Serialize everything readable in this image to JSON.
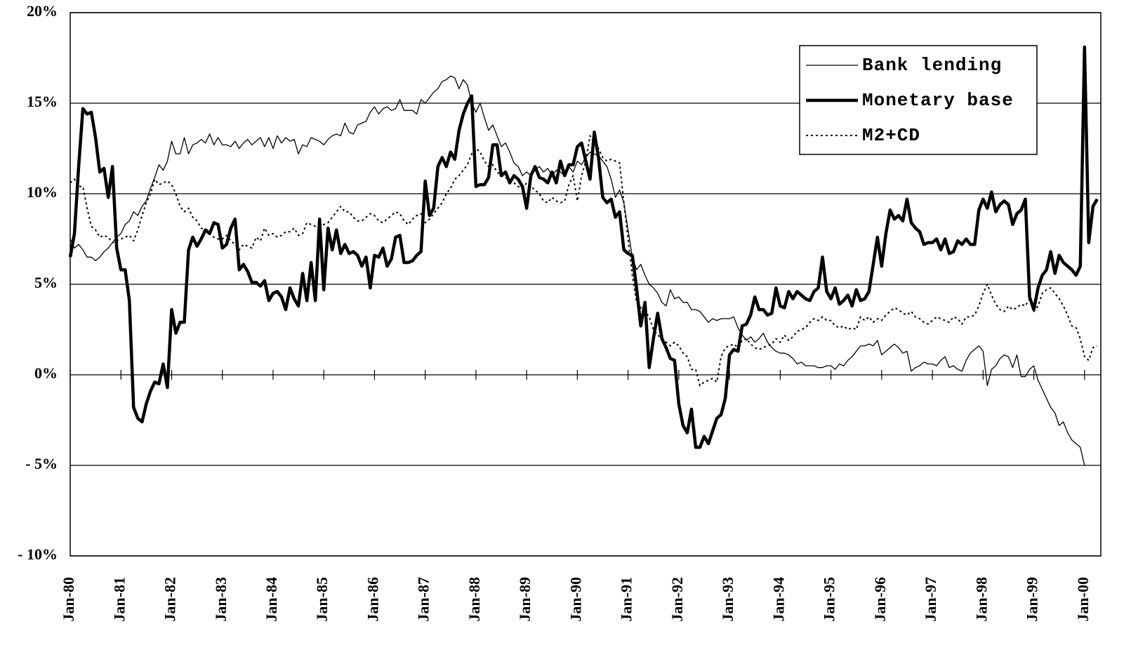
{
  "chart_data": {
    "type": "line",
    "categories": [
      "Jan-80",
      null,
      null,
      null,
      null,
      null,
      null,
      null,
      null,
      null,
      null,
      null,
      "Jan-81",
      null,
      null,
      null,
      null,
      null,
      null,
      null,
      null,
      null,
      null,
      null,
      "Jan-82",
      null,
      null,
      null,
      null,
      null,
      null,
      null,
      null,
      null,
      null,
      null,
      "Jan-83",
      null,
      null,
      null,
      null,
      null,
      null,
      null,
      null,
      null,
      null,
      null,
      "Jan-84",
      null,
      null,
      null,
      null,
      null,
      null,
      null,
      null,
      null,
      null,
      null,
      "Jan-85",
      null,
      null,
      null,
      null,
      null,
      null,
      null,
      null,
      null,
      null,
      null,
      "Jan-86",
      null,
      null,
      null,
      null,
      null,
      null,
      null,
      null,
      null,
      null,
      null,
      "Jan-87",
      null,
      null,
      null,
      null,
      null,
      null,
      null,
      null,
      null,
      null,
      null,
      "Jan-88",
      null,
      null,
      null,
      null,
      null,
      null,
      null,
      null,
      null,
      null,
      null,
      "Jan-89",
      null,
      null,
      null,
      null,
      null,
      null,
      null,
      null,
      null,
      null,
      null,
      "Jan-90",
      null,
      null,
      null,
      null,
      null,
      null,
      null,
      null,
      null,
      null,
      null,
      "Jan-91",
      null,
      null,
      null,
      null,
      null,
      null,
      null,
      null,
      null,
      null,
      null,
      "Jan-92",
      null,
      null,
      null,
      null,
      null,
      null,
      null,
      null,
      null,
      null,
      null,
      "Jan-93",
      null,
      null,
      null,
      null,
      null,
      null,
      null,
      null,
      null,
      null,
      null,
      "Jan-94",
      null,
      null,
      null,
      null,
      null,
      null,
      null,
      null,
      null,
      null,
      null,
      "Jan-95",
      null,
      null,
      null,
      null,
      null,
      null,
      null,
      null,
      null,
      null,
      null,
      "Jan-96",
      null,
      null,
      null,
      null,
      null,
      null,
      null,
      null,
      null,
      null,
      null,
      "Jan-97",
      null,
      null,
      null,
      null,
      null,
      null,
      null,
      null,
      null,
      null,
      null,
      "Jan-98",
      null,
      null,
      null,
      null,
      null,
      null,
      null,
      null,
      null,
      null,
      null,
      "Jan-99",
      null,
      null,
      null,
      null,
      null,
      null,
      null,
      null,
      null,
      null,
      null,
      "Jan-00",
      null,
      null,
      null
    ],
    "series": [
      {
        "name": "Bank lending",
        "color": "#000000",
        "line_width": 1.3,
        "line_style": "solid",
        "values": [
          7.5,
          7.0,
          7.2,
          6.9,
          6.5,
          6.5,
          6.3,
          6.5,
          6.8,
          7.0,
          7.3,
          7.6,
          7.8,
          8.3,
          8.5,
          9.0,
          8.8,
          9.3,
          9.6,
          10.3,
          10.9,
          11.6,
          11.3,
          11.8,
          12.9,
          12.2,
          12.2,
          13.1,
          12.2,
          12.7,
          12.8,
          13.0,
          12.8,
          13.3,
          12.7,
          13.1,
          12.7,
          12.7,
          12.6,
          12.9,
          12.5,
          12.8,
          13.0,
          12.7,
          12.9,
          13.1,
          12.6,
          13.1,
          12.5,
          13.2,
          12.8,
          13.1,
          12.9,
          13.0,
          12.2,
          12.7,
          12.6,
          13.1,
          13.0,
          12.9,
          12.7,
          13.0,
          13.2,
          13.3,
          13.2,
          13.9,
          13.4,
          13.3,
          13.8,
          13.9,
          14.0,
          14.5,
          14.8,
          14.4,
          14.7,
          14.8,
          14.6,
          14.7,
          15.2,
          14.6,
          14.6,
          14.6,
          14.4,
          15.2,
          15.0,
          15.3,
          15.6,
          15.8,
          16.2,
          16.3,
          16.5,
          16.4,
          15.8,
          16.3,
          16.0,
          15.0,
          14.5,
          15.0,
          14.2,
          13.5,
          13.8,
          13.2,
          12.6,
          12.8,
          12.3,
          11.7,
          11.5,
          11.0,
          11.2,
          11.0,
          11.3,
          11.5,
          11.2,
          11.4,
          11.0,
          11.3,
          11.2,
          11.0,
          11.5,
          11.2,
          11.8,
          11.6,
          12.0,
          12.3,
          12.2,
          12.1,
          11.8,
          11.5,
          10.8,
          9.8,
          10.2,
          9.5,
          8.0,
          6.5,
          5.8,
          6.1,
          5.5,
          5.0,
          4.8,
          4.5,
          4.0,
          3.8,
          4.7,
          4.2,
          4.3,
          4.0,
          4.0,
          3.6,
          3.6,
          3.5,
          3.2,
          2.9,
          3.1,
          3.0,
          3.1,
          3.1,
          3.1,
          3.2,
          2.6,
          2.2,
          1.9,
          2.1,
          1.8,
          2.0,
          2.3,
          1.8,
          1.5,
          1.3,
          1.2,
          1.2,
          1.1,
          0.9,
          0.6,
          0.7,
          0.5,
          0.5,
          0.5,
          0.4,
          0.4,
          0.5,
          0.5,
          0.3,
          0.6,
          0.5,
          0.8,
          1.0,
          1.3,
          1.6,
          1.6,
          1.7,
          1.6,
          1.9,
          1.1,
          1.3,
          1.5,
          1.7,
          1.5,
          1.2,
          1.3,
          0.2,
          0.4,
          0.5,
          0.7,
          0.6,
          0.6,
          0.5,
          0.8,
          1.0,
          0.4,
          0.5,
          0.3,
          0.2,
          0.8,
          1.2,
          1.4,
          1.6,
          1.3,
          -0.6,
          0.3,
          0.5,
          0.9,
          1.1,
          1.0,
          0.4,
          1.1,
          -0.1,
          -0.1,
          0.3,
          0.5,
          -0.3,
          -0.8,
          -1.3,
          -1.8,
          -2.1,
          -2.8,
          -2.6,
          -3.2,
          -3.6,
          -3.8,
          -4.0,
          -5.0,
          null,
          null,
          null
        ]
      },
      {
        "name": "Monetary base",
        "color": "#000000",
        "line_width": 4.5,
        "line_style": "solid",
        "values": [
          6.5,
          7.8,
          11.5,
          14.7,
          14.4,
          14.5,
          13.1,
          11.2,
          11.4,
          9.8,
          11.5,
          7.0,
          5.8,
          5.8,
          4.1,
          -1.8,
          -2.4,
          -2.6,
          -1.6,
          -0.9,
          -0.4,
          -0.5,
          0.6,
          -0.7,
          3.6,
          2.3,
          2.9,
          2.9,
          6.9,
          7.6,
          7.1,
          7.5,
          8.0,
          7.8,
          8.4,
          8.3,
          7.0,
          7.2,
          8.1,
          8.6,
          5.8,
          6.1,
          5.7,
          5.1,
          5.1,
          4.9,
          5.2,
          4.1,
          4.5,
          4.6,
          4.3,
          3.6,
          4.8,
          4.2,
          3.8,
          5.6,
          4.1,
          6.2,
          4.1,
          8.6,
          4.7,
          8.1,
          6.9,
          8.0,
          6.7,
          7.2,
          6.7,
          6.8,
          6.6,
          6.0,
          6.5,
          4.8,
          6.6,
          6.5,
          7.0,
          6.0,
          6.4,
          7.6,
          7.7,
          6.2,
          6.2,
          6.3,
          6.6,
          6.8,
          10.7,
          8.8,
          9.2,
          11.5,
          12.0,
          11.5,
          12.3,
          11.9,
          13.5,
          14.4,
          15.0,
          15.4,
          10.4,
          10.5,
          10.5,
          10.9,
          12.7,
          12.7,
          11.0,
          11.2,
          10.6,
          11.0,
          10.8,
          10.4,
          9.2,
          11.0,
          11.5,
          10.9,
          10.8,
          10.6,
          11.2,
          10.6,
          11.8,
          11.0,
          11.6,
          11.6,
          12.6,
          12.8,
          11.8,
          10.8,
          13.4,
          12.0,
          9.8,
          9.5,
          9.7,
          8.7,
          9.0,
          6.9,
          6.7,
          6.6,
          4.8,
          2.7,
          4.0,
          0.4,
          2.0,
          3.4,
          2.0,
          1.5,
          0.9,
          0.8,
          -1.6,
          -2.8,
          -3.2,
          -1.9,
          -4.0,
          -4.0,
          -3.4,
          -3.8,
          -3.1,
          -2.4,
          -2.2,
          -1.3,
          1.1,
          1.4,
          1.3,
          2.7,
          2.8,
          3.3,
          4.3,
          3.6,
          3.6,
          3.3,
          3.4,
          4.8,
          3.8,
          3.7,
          4.6,
          4.2,
          4.6,
          4.4,
          4.2,
          4.1,
          4.6,
          4.8,
          6.5,
          4.6,
          4.2,
          4.8,
          3.9,
          4.1,
          4.4,
          3.8,
          4.7,
          4.1,
          4.2,
          4.6,
          6.1,
          7.6,
          6.0,
          7.8,
          9.1,
          8.6,
          8.8,
          8.5,
          9.7,
          8.4,
          8.1,
          7.9,
          7.2,
          7.3,
          7.3,
          7.5,
          6.9,
          7.5,
          6.7,
          6.8,
          7.4,
          7.2,
          7.5,
          7.2,
          7.2,
          9.1,
          9.7,
          9.2,
          10.1,
          9.0,
          9.4,
          9.6,
          9.4,
          8.3,
          8.9,
          9.1,
          9.7,
          4.3,
          3.6,
          4.8,
          5.5,
          5.8,
          6.8,
          5.6,
          6.6,
          6.2,
          6.0,
          5.8,
          5.5,
          6.0,
          18.1,
          7.3,
          9.3,
          9.7
        ]
      },
      {
        "name": "M2+CD",
        "color": "#000000",
        "line_width": 2,
        "line_style": "dotted",
        "values": [
          10.6,
          10.8,
          10.4,
          10.4,
          9.2,
          8.2,
          8.0,
          7.6,
          7.7,
          7.6,
          7.3,
          7.4,
          7.5,
          7.6,
          7.7,
          7.4,
          8.0,
          8.8,
          9.5,
          10.0,
          10.8,
          10.5,
          10.6,
          10.7,
          10.5,
          10.0,
          9.3,
          9.0,
          9.2,
          8.7,
          8.5,
          8.1,
          8.0,
          7.8,
          7.6,
          7.5,
          7.5,
          7.7,
          7.4,
          7.2,
          6.9,
          7.2,
          7.1,
          7.0,
          7.6,
          7.4,
          8.1,
          7.7,
          7.8,
          7.6,
          7.7,
          7.9,
          7.9,
          8.1,
          7.7,
          7.8,
          8.4,
          8.3,
          8.2,
          8.2,
          8.3,
          8.4,
          8.7,
          9.0,
          9.3,
          9.0,
          9.0,
          8.7,
          8.5,
          8.5,
          8.7,
          8.9,
          8.8,
          8.5,
          8.4,
          8.6,
          8.8,
          9.0,
          8.9,
          8.5,
          8.3,
          8.6,
          8.8,
          8.9,
          8.4,
          8.6,
          8.9,
          9.2,
          9.5,
          10.0,
          10.3,
          10.8,
          11.0,
          11.3,
          11.6,
          12.2,
          12.5,
          12.3,
          11.8,
          11.5,
          11.6,
          11.2,
          11.0,
          10.9,
          10.7,
          10.6,
          10.4,
          10.3,
          10.6,
          10.4,
          10.2,
          10.0,
          9.6,
          9.5,
          9.8,
          9.6,
          9.5,
          9.6,
          10.5,
          11.0,
          9.6,
          11.0,
          11.8,
          13.2,
          12.8,
          12.5,
          12.0,
          11.8,
          11.9,
          11.8,
          11.7,
          9.5,
          7.5,
          5.5,
          4.0,
          3.7,
          3.5,
          3.2,
          2.5,
          2.2,
          2.0,
          1.8,
          1.6,
          1.8,
          1.6,
          1.2,
          1.0,
          0.3,
          0.3,
          -0.6,
          -0.4,
          -0.3,
          -0.2,
          -0.4,
          1.0,
          1.5,
          1.6,
          1.7,
          1.5,
          1.9,
          2.0,
          1.7,
          1.5,
          1.4,
          1.5,
          1.6,
          1.7,
          2.0,
          1.8,
          2.2,
          1.9,
          2.1,
          2.4,
          2.5,
          2.6,
          2.9,
          3.1,
          3.0,
          3.2,
          3.0,
          3.0,
          2.7,
          2.6,
          2.7,
          2.5,
          2.6,
          2.5,
          3.2,
          3.0,
          3.2,
          2.9,
          3.1,
          3.0,
          3.3,
          3.5,
          3.7,
          3.6,
          3.4,
          3.3,
          3.5,
          3.2,
          3.1,
          2.9,
          2.8,
          3.0,
          3.2,
          3.1,
          3.0,
          2.9,
          3.2,
          3.1,
          2.8,
          3.2,
          3.2,
          3.3,
          3.8,
          4.5,
          5.0,
          4.4,
          3.9,
          3.6,
          3.5,
          3.8,
          3.6,
          3.7,
          3.9,
          3.8,
          4.2,
          3.5,
          3.8,
          4.5,
          4.7,
          4.8,
          4.5,
          4.2,
          3.8,
          3.3,
          2.7,
          2.6,
          2.0,
          1.0,
          0.8,
          1.5,
          1.6
        ]
      }
    ],
    "ylim": [
      -10,
      20
    ],
    "yticks": [
      {
        "value": -10,
        "label": "- 10%"
      },
      {
        "value": -5,
        "label": "- 5%"
      },
      {
        "value": 0,
        "label": "0%"
      },
      {
        "value": 5,
        "label": "5%"
      },
      {
        "value": 10,
        "label": "10%"
      },
      {
        "value": 15,
        "label": "15%"
      },
      {
        "value": 20,
        "label": "20%"
      }
    ],
    "grid": true,
    "legend": "upper right"
  }
}
